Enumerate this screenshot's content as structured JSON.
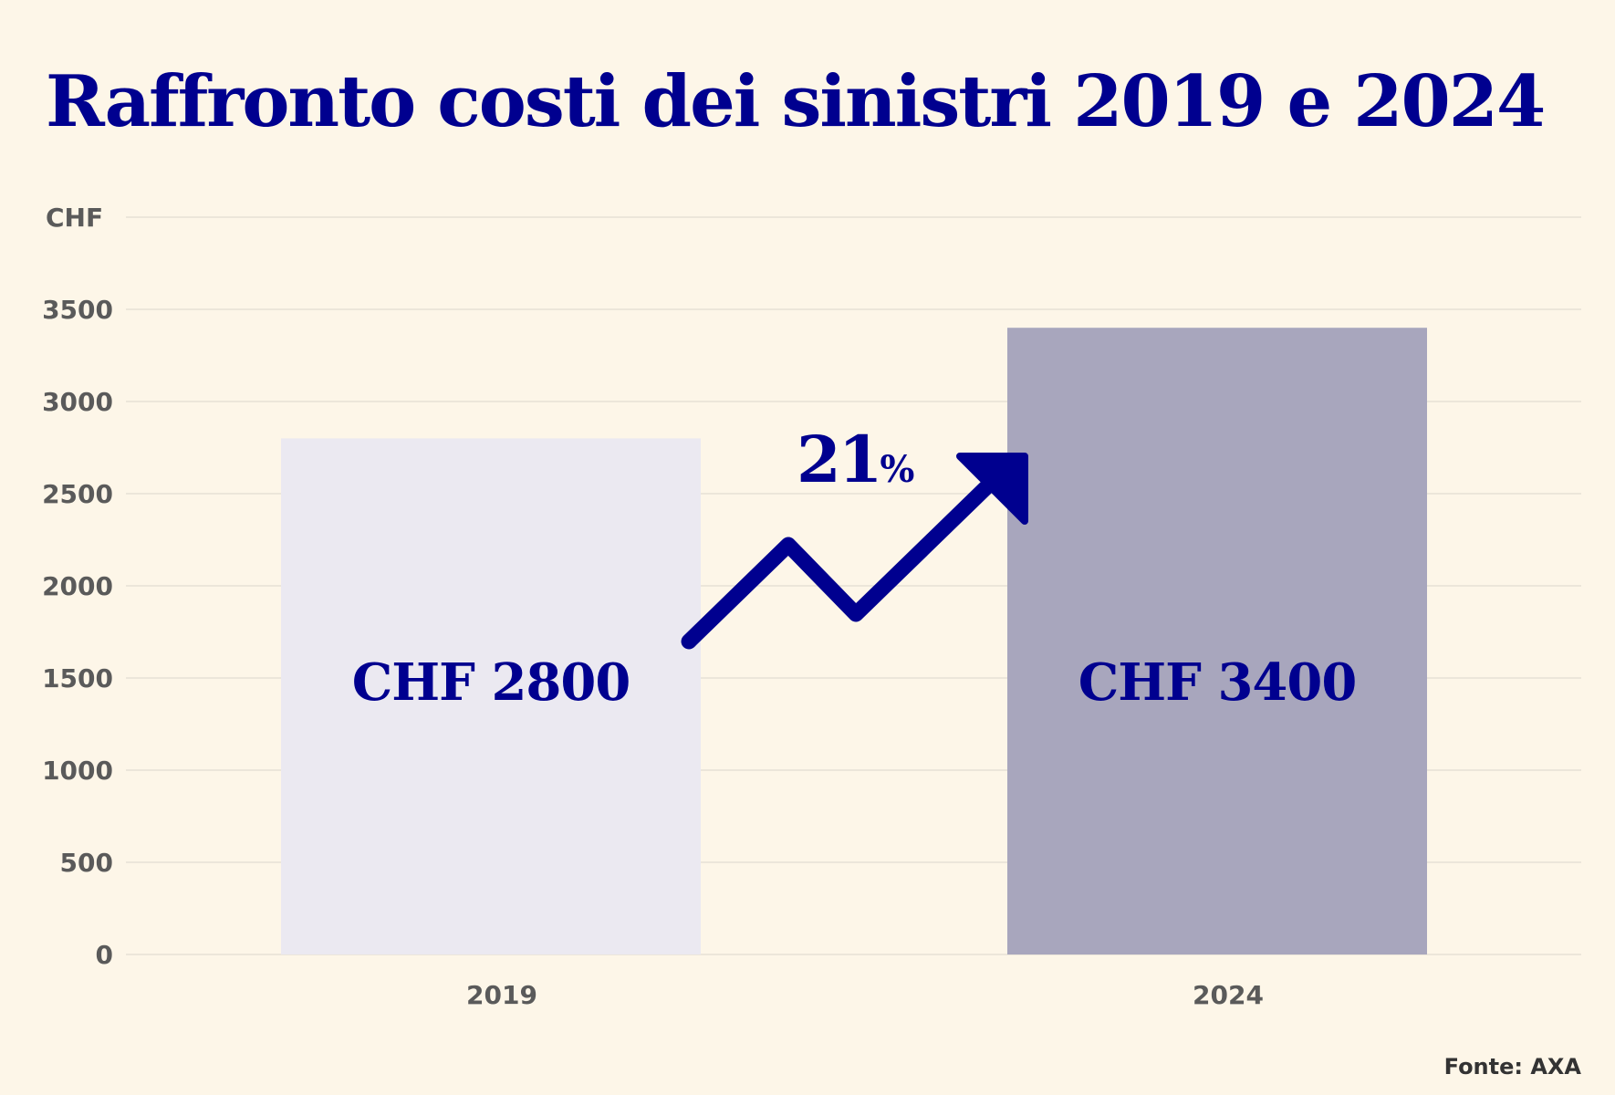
{
  "title": "Raffronto costi dei sinistri 2019 e 2024",
  "source": "Fonte: AXA",
  "colors": {
    "background": "#fdf6e8",
    "title": "#00008f",
    "bar_2019": "#ebe9f1",
    "bar_2024": "#a8a6bd",
    "arrow": "#00008f",
    "grid": "#e6e1d6",
    "tick_text": "#5a5a5a"
  },
  "chart_data": {
    "type": "bar",
    "title": "Raffronto costi dei sinistri 2019 e 2024",
    "ylabel": "CHF",
    "xlabel": "",
    "categories": [
      "2019",
      "2024"
    ],
    "values": [
      2800,
      3400
    ],
    "value_labels": [
      "CHF 2800",
      "CHF 3400"
    ],
    "ylim": [
      0,
      4000
    ],
    "yticks": [
      0,
      500,
      1000,
      1500,
      2000,
      2500,
      3000,
      3500
    ],
    "grid": true,
    "annotation": {
      "value": "21",
      "unit": "%",
      "icon": "zigzag-up-arrow-icon"
    }
  }
}
